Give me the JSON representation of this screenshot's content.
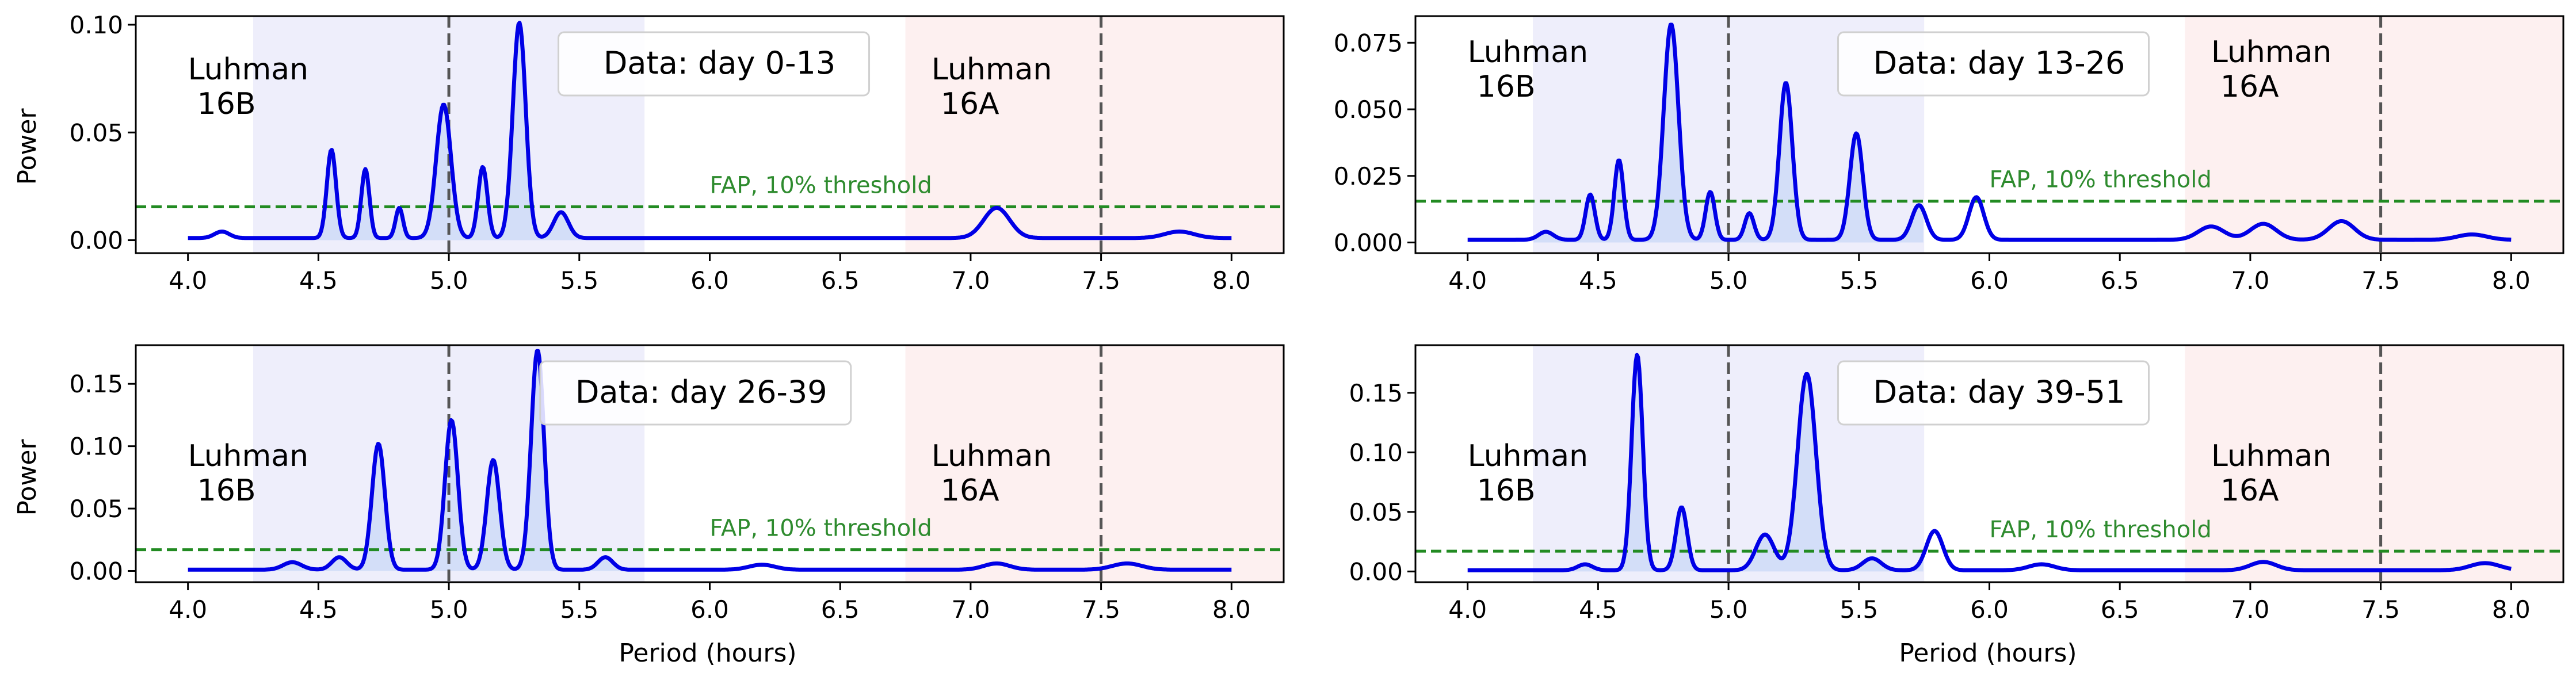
{
  "figure": {
    "xlabel": "Period (hours)",
    "ylabel": "Power"
  },
  "colors": {
    "curve": "#0000e6",
    "fill": "#cfdcf7",
    "band_16B": "#eeeefb",
    "band_16A": "#fdf0f0",
    "fap_line": "#228b22",
    "fap_text": "#2e8b2e",
    "vline": "#555555"
  },
  "chart_data": [
    {
      "type": "line",
      "title": "Data: day 0-13",
      "xlabel": "",
      "ylabel": "Power",
      "xlim": [
        3.8,
        8.2
      ],
      "ylim": [
        -0.006,
        0.104
      ],
      "xticks": [
        "4.0",
        "4.5",
        "5.0",
        "5.5",
        "6.0",
        "6.5",
        "7.0",
        "7.5",
        "8.0"
      ],
      "yticks": [
        "0.00",
        "0.05",
        "0.10"
      ],
      "fap": {
        "value": 0.0155,
        "label": "FAP, 10% threshold"
      },
      "bands": [
        {
          "name": "Luhman\n16B",
          "range": [
            4.25,
            5.75
          ],
          "center": 5.0,
          "label": "Luhman 16B"
        },
        {
          "name": "Luhman\n16A",
          "range": [
            6.75,
            8.2
          ],
          "center": 7.5,
          "label": "Luhman 16A"
        }
      ],
      "series": [
        {
          "peaks": [
            [
              4.55,
              0.041,
              0.025
            ],
            [
              4.68,
              0.032,
              0.022
            ],
            [
              4.81,
              0.014,
              0.02
            ],
            [
              4.98,
              0.062,
              0.04
            ],
            [
              5.13,
              0.033,
              0.025
            ],
            [
              5.27,
              0.1,
              0.035
            ],
            [
              5.43,
              0.012,
              0.04
            ],
            [
              4.13,
              0.003,
              0.04
            ],
            [
              7.1,
              0.014,
              0.07
            ],
            [
              7.8,
              0.003,
              0.08
            ]
          ],
          "baseline": 0.001
        }
      ]
    },
    {
      "type": "line",
      "title": "Data: day 13-26",
      "xlabel": "",
      "ylabel": "",
      "xlim": [
        3.8,
        8.2
      ],
      "ylim": [
        -0.004,
        0.085
      ],
      "xticks": [
        "4.0",
        "4.5",
        "5.0",
        "5.5",
        "6.0",
        "6.5",
        "7.0",
        "7.5",
        "8.0"
      ],
      "yticks": [
        "0.000",
        "0.025",
        "0.050",
        "0.075"
      ],
      "fap": {
        "value": 0.0155,
        "label": "FAP, 10% threshold"
      },
      "bands": [
        {
          "range": [
            4.25,
            5.75
          ],
          "center": 5.0,
          "label": "Luhman 16B"
        },
        {
          "range": [
            6.75,
            8.2
          ],
          "center": 7.5,
          "label": "Luhman 16A"
        }
      ],
      "series": [
        {
          "peaks": [
            [
              4.47,
              0.017,
              0.025
            ],
            [
              4.58,
              0.03,
              0.025
            ],
            [
              4.78,
              0.081,
              0.04
            ],
            [
              4.93,
              0.018,
              0.025
            ],
            [
              5.08,
              0.01,
              0.025
            ],
            [
              5.22,
              0.059,
              0.035
            ],
            [
              5.49,
              0.04,
              0.035
            ],
            [
              5.73,
              0.013,
              0.04
            ],
            [
              5.95,
              0.016,
              0.04
            ],
            [
              6.85,
              0.005,
              0.07
            ],
            [
              7.05,
              0.006,
              0.07
            ],
            [
              7.35,
              0.007,
              0.07
            ],
            [
              7.85,
              0.002,
              0.08
            ],
            [
              4.3,
              0.003,
              0.04
            ]
          ],
          "baseline": 0.001
        }
      ]
    },
    {
      "type": "line",
      "title": "Data: day 26-39",
      "xlabel": "Period (hours)",
      "ylabel": "Power",
      "xlim": [
        3.8,
        8.2
      ],
      "ylim": [
        -0.009,
        0.181
      ],
      "xticks": [
        "4.0",
        "4.5",
        "5.0",
        "5.5",
        "6.0",
        "6.5",
        "7.0",
        "7.5",
        "8.0"
      ],
      "yticks": [
        "0.00",
        "0.05",
        "0.10",
        "0.15"
      ],
      "fap": {
        "value": 0.017,
        "label": "FAP, 10% threshold"
      },
      "bands": [
        {
          "range": [
            4.25,
            5.75
          ],
          "center": 5.0,
          "label": "Luhman 16B"
        },
        {
          "range": [
            6.75,
            8.2
          ],
          "center": 7.5,
          "label": "Luhman 16A"
        }
      ],
      "series": [
        {
          "peaks": [
            [
              4.58,
              0.01,
              0.04
            ],
            [
              4.73,
              0.101,
              0.035
            ],
            [
              5.01,
              0.12,
              0.035
            ],
            [
              5.17,
              0.088,
              0.035
            ],
            [
              5.34,
              0.176,
              0.035
            ],
            [
              5.6,
              0.01,
              0.04
            ],
            [
              4.4,
              0.006,
              0.05
            ],
            [
              6.2,
              0.004,
              0.07
            ],
            [
              7.1,
              0.005,
              0.07
            ],
            [
              7.6,
              0.005,
              0.08
            ]
          ],
          "baseline": 0.001
        }
      ]
    },
    {
      "type": "line",
      "title": "Data: day 39-51",
      "xlabel": "Period (hours)",
      "ylabel": "",
      "xlim": [
        3.8,
        8.2
      ],
      "ylim": [
        -0.009,
        0.19
      ],
      "xticks": [
        "4.0",
        "4.5",
        "5.0",
        "5.5",
        "6.0",
        "6.5",
        "7.0",
        "7.5",
        "8.0"
      ],
      "yticks": [
        "0.00",
        "0.05",
        "0.10",
        "0.15"
      ],
      "fap": {
        "value": 0.017,
        "label": "FAP, 10% threshold"
      },
      "bands": [
        {
          "range": [
            4.25,
            5.75
          ],
          "center": 5.0,
          "label": "Luhman 16B"
        },
        {
          "range": [
            6.75,
            8.2
          ],
          "center": 7.5,
          "label": "Luhman 16A"
        }
      ],
      "series": [
        {
          "peaks": [
            [
              4.65,
              0.181,
              0.03
            ],
            [
              4.82,
              0.053,
              0.03
            ],
            [
              5.14,
              0.03,
              0.05
            ],
            [
              5.3,
              0.165,
              0.05
            ],
            [
              5.55,
              0.01,
              0.05
            ],
            [
              5.79,
              0.033,
              0.045
            ],
            [
              4.45,
              0.005,
              0.04
            ],
            [
              6.2,
              0.005,
              0.07
            ],
            [
              7.05,
              0.007,
              0.07
            ],
            [
              7.9,
              0.006,
              0.08
            ]
          ],
          "baseline": 0.001
        }
      ]
    }
  ]
}
